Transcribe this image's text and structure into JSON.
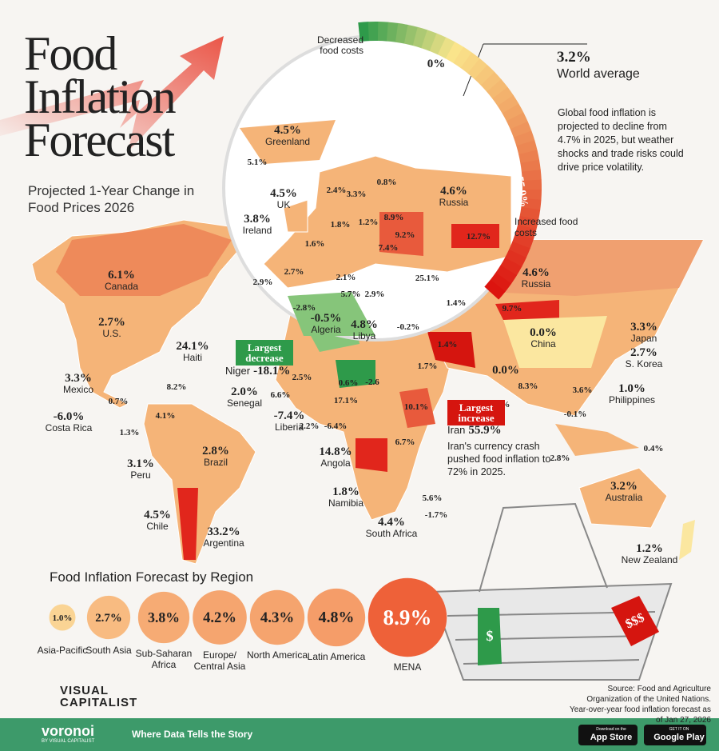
{
  "header": {
    "title": "Food Inflation Forecast",
    "subtitle": "Projected 1-Year Change in Food Prices 2026"
  },
  "gauge": {
    "decreased_label": "Decreased food costs",
    "min": "-18.1%",
    "mid": "0%",
    "max": "55.9%",
    "increased_label": "Increased food costs"
  },
  "world_average": {
    "value": "3.2%",
    "label": "World average",
    "description": "Global food inflation is projected to decline from 4.7% in 2025, but weather shocks and trade risks could drive price volatility."
  },
  "countries": [
    {
      "value": "6.1%",
      "name": "Canada"
    },
    {
      "value": "2.7%",
      "name": "U.S."
    },
    {
      "value": "24.1%",
      "name": "Haiti"
    },
    {
      "value": "8.2%"
    },
    {
      "value": "3.3%",
      "name": "Mexico"
    },
    {
      "value": "0.7%"
    },
    {
      "value": "-6.0%",
      "name": "Costa Rica"
    },
    {
      "value": "1.3%"
    },
    {
      "value": "4.1%"
    },
    {
      "value": "2.8%",
      "name": "Brazil"
    },
    {
      "value": "3.1%",
      "name": "Peru"
    },
    {
      "value": "4.5%",
      "name": "Chile"
    },
    {
      "value": "33.2%",
      "name": "Argentina"
    },
    {
      "value": "2.5%"
    },
    {
      "value": "0.6%"
    },
    {
      "value": "-2.6"
    },
    {
      "value": "2.0%",
      "name": "Senegal"
    },
    {
      "value": "6.6%"
    },
    {
      "value": "-7.4%",
      "name": "Liberia"
    },
    {
      "value": "2.2%"
    },
    {
      "value": "-6.4%"
    },
    {
      "value": "17.1%"
    },
    {
      "value": "10.1%"
    },
    {
      "value": "6.7%"
    },
    {
      "value": "14.8%",
      "name": "Angola"
    },
    {
      "value": "1.8%",
      "name": "Namibia"
    },
    {
      "value": "5.6%"
    },
    {
      "value": "-1.7%"
    },
    {
      "value": "4.4%",
      "name": "South Africa"
    },
    {
      "value": "-2.8%"
    },
    {
      "value": "-0.5%",
      "name": "Algeria"
    },
    {
      "value": "4.8%",
      "name": "Libya"
    },
    {
      "value": "-0.2%"
    },
    {
      "value": "1.7%"
    },
    {
      "value": "1.4%"
    },
    {
      "value": "1.4%"
    },
    {
      "value": "25.1%"
    },
    {
      "value": "9.7%"
    },
    {
      "value": "4.6%",
      "name": "Russia"
    },
    {
      "value": "3.3%",
      "name": "Japan"
    },
    {
      "value": "2.7%",
      "name": "S. Korea"
    },
    {
      "value": "0.0%",
      "name": "China"
    },
    {
      "value": "0.0%"
    },
    {
      "value": "8.3%"
    },
    {
      "value": "3.6%"
    },
    {
      "value": "1.0%",
      "name": "Philippines"
    },
    {
      "value": "-0.1%"
    },
    {
      "value": "3.2%"
    },
    {
      "value": "0.4%"
    },
    {
      "value": "2.8%"
    },
    {
      "value": "3.2%",
      "name": "Australia"
    },
    {
      "value": "1.2%",
      "name": "New Zealand"
    }
  ],
  "europe_inset": [
    {
      "value": "4.5%",
      "name": "Greenland"
    },
    {
      "value": "5.1%"
    },
    {
      "value": "4.5%",
      "name": "UK"
    },
    {
      "value": "3.8%",
      "name": "Ireland"
    },
    {
      "value": "2.4%"
    },
    {
      "value": "3.3%"
    },
    {
      "value": "0.8%"
    },
    {
      "value": "4.6%",
      "name": "Russia"
    },
    {
      "value": "1.8%"
    },
    {
      "value": "1.2%"
    },
    {
      "value": "8.9%"
    },
    {
      "value": "9.2%"
    },
    {
      "value": "12.7%"
    },
    {
      "value": "1.6%"
    },
    {
      "value": "7.4%"
    },
    {
      "value": "2.7%"
    },
    {
      "value": "2.1%"
    },
    {
      "value": "2.9%"
    },
    {
      "value": "5.7%"
    },
    {
      "value": "2.9%"
    }
  ],
  "callouts": {
    "largest_decrease": {
      "label": "Largest decrease",
      "country": "Niger",
      "value": "-18.1%"
    },
    "largest_increase": {
      "label": "Largest increase",
      "country": "Iran",
      "value": "55.9%",
      "note": "Iran's currency crash pushed food inflation to 72% in 2025."
    }
  },
  "regions": {
    "title": "Food Inflation Forecast by Region",
    "items": [
      {
        "name": "Asia-Pacific",
        "value": 1.0,
        "label": "1.0%"
      },
      {
        "name": "South Asia",
        "value": 2.7,
        "label": "2.7%"
      },
      {
        "name": "Sub-Saharan Africa",
        "value": 3.8,
        "label": "3.8%"
      },
      {
        "name": "Europe/ Central Asia",
        "value": 4.2,
        "label": "4.2%"
      },
      {
        "name": "North America",
        "value": 4.3,
        "label": "4.3%"
      },
      {
        "name": "Latin America",
        "value": 4.8,
        "label": "4.8%"
      },
      {
        "name": "MENA",
        "value": 8.9,
        "label": "8.9%"
      }
    ]
  },
  "tags": {
    "red": "$$$",
    "green": "$"
  },
  "source": "Source: Food and Agriculture Organization of the United Nations. Year-over-year food inflation forecast as of Jan 27, 2026",
  "brand": {
    "name": "VISUAL CAPITALIST"
  },
  "footer": {
    "logo": "voronoi",
    "logo_sub": "BY VISUAL CAPITALIST",
    "tagline": "Where Data Tells the Story",
    "app_store": "App Store",
    "app_store_pre": "Download on the",
    "google_play": "Google Play",
    "google_play_pre": "GET IT ON"
  }
}
